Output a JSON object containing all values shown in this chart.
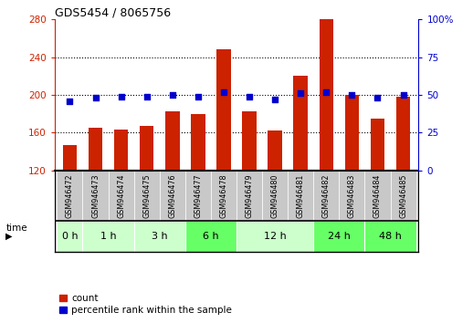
{
  "title": "GDS5454 / 8065756",
  "samples": [
    "GSM946472",
    "GSM946473",
    "GSM946474",
    "GSM946475",
    "GSM946476",
    "GSM946477",
    "GSM946478",
    "GSM946479",
    "GSM946480",
    "GSM946481",
    "GSM946482",
    "GSM946483",
    "GSM946484",
    "GSM946485"
  ],
  "count_values": [
    147,
    165,
    163,
    167,
    183,
    180,
    248,
    183,
    162,
    220,
    282,
    200,
    175,
    198
  ],
  "percentile_values": [
    46,
    48,
    49,
    49,
    50,
    49,
    52,
    49,
    47,
    51,
    52,
    50,
    48,
    50
  ],
  "time_groups": [
    {
      "label": "0 h",
      "n": 1,
      "color": "#ccffcc"
    },
    {
      "label": "1 h",
      "n": 2,
      "color": "#ccffcc"
    },
    {
      "label": "3 h",
      "n": 2,
      "color": "#ccffcc"
    },
    {
      "label": "6 h",
      "n": 2,
      "color": "#66ff66"
    },
    {
      "label": "12 h",
      "n": 3,
      "color": "#ccffcc"
    },
    {
      "label": "24 h",
      "n": 2,
      "color": "#66ff66"
    },
    {
      "label": "48 h",
      "n": 2,
      "color": "#66ff66"
    }
  ],
  "ylim_left": [
    120,
    280
  ],
  "ylim_right": [
    0,
    100
  ],
  "yticks_left": [
    120,
    160,
    200,
    240,
    280
  ],
  "yticks_right": [
    0,
    25,
    50,
    75,
    100
  ],
  "bar_color": "#cc2200",
  "dot_color": "#0000cc",
  "grid_color": "#000000",
  "bg_color": "#ffffff",
  "sample_area_color": "#c8c8c8",
  "time_label": "time",
  "legend_count": "count",
  "legend_pct": "percentile rank within the sample"
}
